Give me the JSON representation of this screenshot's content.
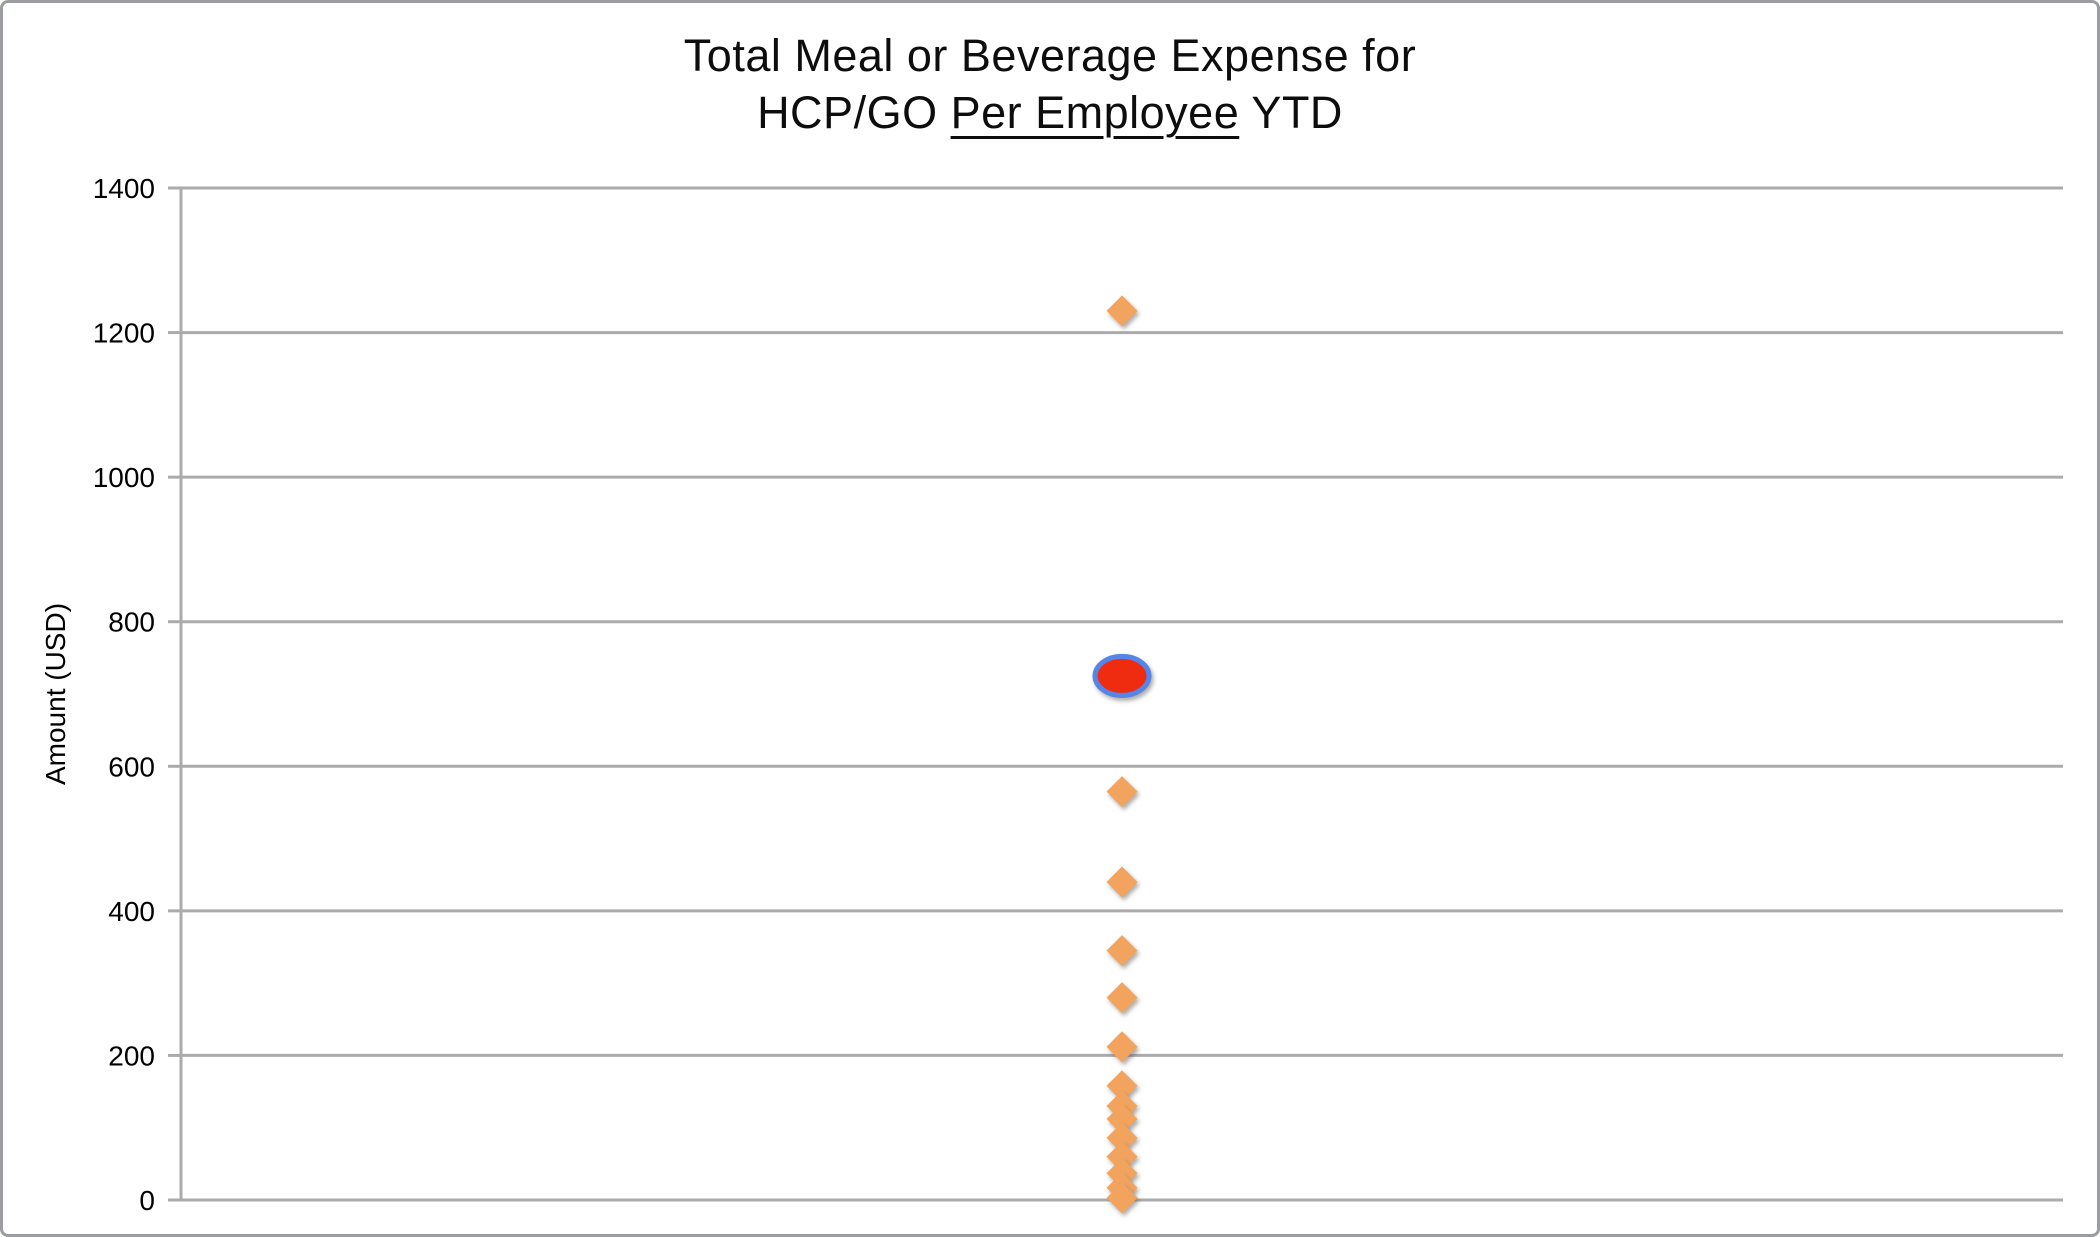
{
  "frame": {
    "background": "#FFFFFF",
    "border_color": "#9B9DA0"
  },
  "title": {
    "line1": "Total Meal or Beverage Expense for",
    "line2_pre": "HCP/GO ",
    "line2_underlined": "Per Employee",
    "line2_post": " YTD"
  },
  "chart_data": {
    "type": "scatter",
    "title": "Total Meal or Beverage Expense for HCP/GO Per Employee YTD",
    "ylabel": "Amount (USD)",
    "xlabel": "",
    "ylim": [
      0,
      1400
    ],
    "yticks": [
      0,
      200,
      400,
      600,
      800,
      1000,
      1200,
      1400
    ],
    "ytick_labels": [
      "0",
      "200",
      "400",
      "600",
      "800",
      "1000",
      "1200",
      "1400"
    ],
    "grid": true,
    "legend_position": "none",
    "x_axis_labels_visible": false,
    "series": [
      {
        "name": "per-employee-expense-points",
        "marker": "diamond",
        "fill": "#F2A45F",
        "values": [
          1230,
          565,
          440,
          345,
          280,
          212,
          158,
          130,
          112,
          86,
          60,
          37,
          17,
          3
        ]
      },
      {
        "name": "highlighted-employee-point",
        "marker": "ellipse",
        "fill": "#F02C10",
        "outline": "#5585E6",
        "values": [
          725
        ]
      }
    ],
    "colors": {
      "gridline": "#ABABAB",
      "axis_line": "#ABABAB",
      "tick": "#ABABAB",
      "text": "#000000"
    }
  }
}
